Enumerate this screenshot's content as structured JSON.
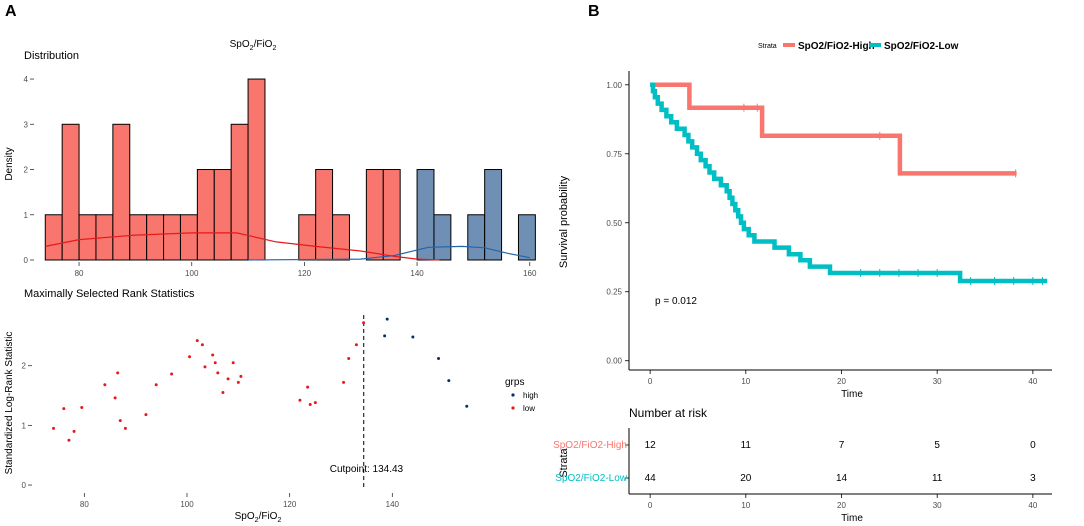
{
  "panels": {
    "a_label": "A",
    "b_label": "B"
  },
  "colors": {
    "low": "#F8766D",
    "high": "#6F8FB5",
    "low_line": "#E41A1C",
    "high_line": "#2166AC",
    "km_high": "#F8766D",
    "km_low": "#00BFC4",
    "point_low": "#E41A1C",
    "point_high": "#08306B"
  },
  "chart_data": [
    {
      "type": "bar",
      "title": "SpO2/FiO2",
      "title_main": "SpO",
      "title_sub1": "2",
      "title_mid": "/FiO",
      "title_sub2": "2",
      "subtitle": "Distribution",
      "xlabel": "",
      "ylabel": "Density",
      "xlim": [
        72,
        162
      ],
      "ylim": [
        0,
        4.2
      ],
      "xticks": [
        80,
        100,
        120,
        140,
        160
      ],
      "yticks": [
        0,
        1,
        2,
        3,
        4
      ],
      "bin_width": 3,
      "bins": [
        {
          "start": 74,
          "count": 1,
          "group": "low"
        },
        {
          "start": 77,
          "count": 3,
          "group": "low"
        },
        {
          "start": 80,
          "count": 1,
          "group": "low"
        },
        {
          "start": 83,
          "count": 1,
          "group": "low"
        },
        {
          "start": 86,
          "count": 3,
          "group": "low"
        },
        {
          "start": 89,
          "count": 1,
          "group": "low"
        },
        {
          "start": 92,
          "count": 1,
          "group": "low"
        },
        {
          "start": 95,
          "count": 1,
          "group": "low"
        },
        {
          "start": 98,
          "count": 1,
          "group": "low"
        },
        {
          "start": 101,
          "count": 2,
          "group": "low"
        },
        {
          "start": 104,
          "count": 2,
          "group": "low"
        },
        {
          "start": 107,
          "count": 3,
          "group": "low"
        },
        {
          "start": 110,
          "count": 4,
          "group": "low"
        },
        {
          "start": 119,
          "count": 1,
          "group": "low"
        },
        {
          "start": 122,
          "count": 2,
          "group": "low"
        },
        {
          "start": 125,
          "count": 1,
          "group": "low"
        },
        {
          "start": 131,
          "count": 2,
          "group": "low"
        },
        {
          "start": 134,
          "count": 2,
          "group": "low"
        },
        {
          "start": 140,
          "count": 2,
          "group": "high"
        },
        {
          "start": 143,
          "count": 1,
          "group": "high"
        },
        {
          "start": 149,
          "count": 1,
          "group": "high"
        },
        {
          "start": 152,
          "count": 2,
          "group": "high"
        },
        {
          "start": 158,
          "count": 1,
          "group": "high"
        }
      ],
      "density_low": [
        [
          74,
          0.3
        ],
        [
          80,
          0.45
        ],
        [
          90,
          0.55
        ],
        [
          100,
          0.6
        ],
        [
          108,
          0.6
        ],
        [
          115,
          0.4
        ],
        [
          122,
          0.3
        ],
        [
          130,
          0.2
        ],
        [
          136,
          0.08
        ],
        [
          140,
          0.02
        ],
        [
          144,
          0.0
        ]
      ],
      "density_high": [
        [
          110,
          0.0
        ],
        [
          130,
          0.02
        ],
        [
          136,
          0.1
        ],
        [
          142,
          0.28
        ],
        [
          148,
          0.3
        ],
        [
          152,
          0.27
        ],
        [
          156,
          0.15
        ],
        [
          160,
          0.05
        ]
      ]
    },
    {
      "type": "scatter",
      "title": "Maximally Selected Rank Statistics",
      "xlabel": "SpO2/FiO2",
      "xlabel_main": "SpO",
      "xlabel_sub1": "2",
      "xlabel_mid": "/FiO",
      "xlabel_sub2": "2",
      "ylabel": "Standardized Log-Rank Statistic",
      "xlim": [
        70,
        160
      ],
      "ylim": [
        -0.1,
        2.95
      ],
      "xticks": [
        80,
        100,
        120,
        140
      ],
      "yticks": [
        0,
        1,
        2
      ],
      "cutpoint": 134.43,
      "cutpoint_label": "Cutpoint: 134.43",
      "legend_title": "grps",
      "legend_items": [
        {
          "name": "high",
          "group": "high"
        },
        {
          "name": "low",
          "group": "low"
        }
      ],
      "points": [
        {
          "x": 74,
          "y": 0.95,
          "group": "low"
        },
        {
          "x": 76,
          "y": 1.28,
          "group": "low"
        },
        {
          "x": 77,
          "y": 0.75,
          "group": "low"
        },
        {
          "x": 78,
          "y": 0.9,
          "group": "low"
        },
        {
          "x": 79.5,
          "y": 1.3,
          "group": "low"
        },
        {
          "x": 84,
          "y": 1.68,
          "group": "low"
        },
        {
          "x": 86,
          "y": 1.46,
          "group": "low"
        },
        {
          "x": 86.5,
          "y": 1.88,
          "group": "low"
        },
        {
          "x": 87,
          "y": 1.08,
          "group": "low"
        },
        {
          "x": 88,
          "y": 0.95,
          "group": "low"
        },
        {
          "x": 92,
          "y": 1.18,
          "group": "low"
        },
        {
          "x": 94,
          "y": 1.68,
          "group": "low"
        },
        {
          "x": 97,
          "y": 1.86,
          "group": "low"
        },
        {
          "x": 100.5,
          "y": 2.15,
          "group": "low"
        },
        {
          "x": 102,
          "y": 2.42,
          "group": "low"
        },
        {
          "x": 103,
          "y": 2.35,
          "group": "low"
        },
        {
          "x": 103.5,
          "y": 1.98,
          "group": "low"
        },
        {
          "x": 105,
          "y": 2.18,
          "group": "low"
        },
        {
          "x": 105.5,
          "y": 2.05,
          "group": "low"
        },
        {
          "x": 106,
          "y": 1.88,
          "group": "low"
        },
        {
          "x": 107,
          "y": 1.55,
          "group": "low"
        },
        {
          "x": 108,
          "y": 1.78,
          "group": "low"
        },
        {
          "x": 109,
          "y": 2.05,
          "group": "low"
        },
        {
          "x": 110,
          "y": 1.72,
          "group": "low"
        },
        {
          "x": 110.5,
          "y": 1.82,
          "group": "low"
        },
        {
          "x": 122,
          "y": 1.42,
          "group": "low"
        },
        {
          "x": 123.5,
          "y": 1.64,
          "group": "low"
        },
        {
          "x": 124,
          "y": 1.35,
          "group": "low"
        },
        {
          "x": 125,
          "y": 1.38,
          "group": "low"
        },
        {
          "x": 130.5,
          "y": 1.72,
          "group": "low"
        },
        {
          "x": 131.5,
          "y": 2.12,
          "group": "low"
        },
        {
          "x": 133,
          "y": 2.35,
          "group": "low"
        },
        {
          "x": 134.4,
          "y": 2.72,
          "group": "low"
        },
        {
          "x": 138.5,
          "y": 2.5,
          "group": "high"
        },
        {
          "x": 139,
          "y": 2.78,
          "group": "high"
        },
        {
          "x": 144,
          "y": 2.48,
          "group": "high"
        },
        {
          "x": 149,
          "y": 2.12,
          "group": "high"
        },
        {
          "x": 151,
          "y": 1.75,
          "group": "high"
        },
        {
          "x": 154.5,
          "y": 1.32,
          "group": "high"
        }
      ]
    },
    {
      "type": "line",
      "title": "",
      "xlabel": "Time",
      "ylabel": "Survival probability",
      "xlim": [
        -2,
        42
      ],
      "ylim": [
        -0.03,
        1.05
      ],
      "xticks": [
        0,
        10,
        20,
        30,
        40
      ],
      "yticks": [
        0,
        0.25,
        0.5,
        0.75,
        1
      ],
      "ytick_labels": [
        "0.00",
        "0.25",
        "0.50",
        "0.75",
        "1.00"
      ],
      "legend_title": "Strata",
      "annotation": "p = 0.012",
      "series": [
        {
          "name": "SpO2/FiO2-High",
          "color_key": "km_high",
          "steps": [
            [
              0,
              1.0
            ],
            [
              4.1,
              0.917
            ],
            [
              11.7,
              0.815
            ],
            [
              26.1,
              0.679
            ],
            [
              38.3,
              0.679
            ]
          ],
          "censor": [
            9.8,
            11.2,
            24.0,
            38.2
          ]
        },
        {
          "name": "SpO2/FiO2-Low",
          "color_key": "km_low",
          "steps": [
            [
              0,
              1.0
            ],
            [
              0.3,
              0.977
            ],
            [
              0.5,
              0.955
            ],
            [
              0.8,
              0.932
            ],
            [
              1.2,
              0.909
            ],
            [
              1.7,
              0.886
            ],
            [
              2.2,
              0.864
            ],
            [
              2.8,
              0.841
            ],
            [
              3.6,
              0.818
            ],
            [
              4.0,
              0.795
            ],
            [
              4.4,
              0.773
            ],
            [
              4.9,
              0.75
            ],
            [
              5.3,
              0.727
            ],
            [
              5.8,
              0.705
            ],
            [
              6.2,
              0.682
            ],
            [
              6.7,
              0.659
            ],
            [
              7.4,
              0.636
            ],
            [
              8.0,
              0.614
            ],
            [
              8.3,
              0.591
            ],
            [
              8.6,
              0.568
            ],
            [
              8.9,
              0.545
            ],
            [
              9.2,
              0.523
            ],
            [
              9.5,
              0.5
            ],
            [
              9.8,
              0.477
            ],
            [
              10.3,
              0.455
            ],
            [
              10.9,
              0.432
            ],
            [
              13.0,
              0.41
            ],
            [
              14.5,
              0.386
            ],
            [
              15.7,
              0.364
            ],
            [
              16.7,
              0.341
            ],
            [
              18.8,
              0.318
            ],
            [
              32.4,
              0.289
            ],
            [
              41.5,
              0.289
            ]
          ],
          "censor": [
            22.0,
            24.0,
            26.0,
            28.0,
            30.0,
            33.5,
            36.0,
            38.0,
            40.0,
            41.0
          ]
        }
      ]
    },
    {
      "type": "table",
      "title": "Number at risk",
      "xlabel": "Time",
      "ylabel": "Strata",
      "xlim": [
        -2,
        42
      ],
      "xticks": [
        0,
        10,
        20,
        30,
        40
      ],
      "rows": [
        {
          "name": "SpO2/FiO2-High",
          "color_key": "km_high",
          "values": [
            12,
            11,
            7,
            5,
            0
          ]
        },
        {
          "name": "SpO2/FiO2-Low",
          "color_key": "km_low",
          "values": [
            44,
            20,
            14,
            11,
            3
          ]
        }
      ]
    }
  ]
}
